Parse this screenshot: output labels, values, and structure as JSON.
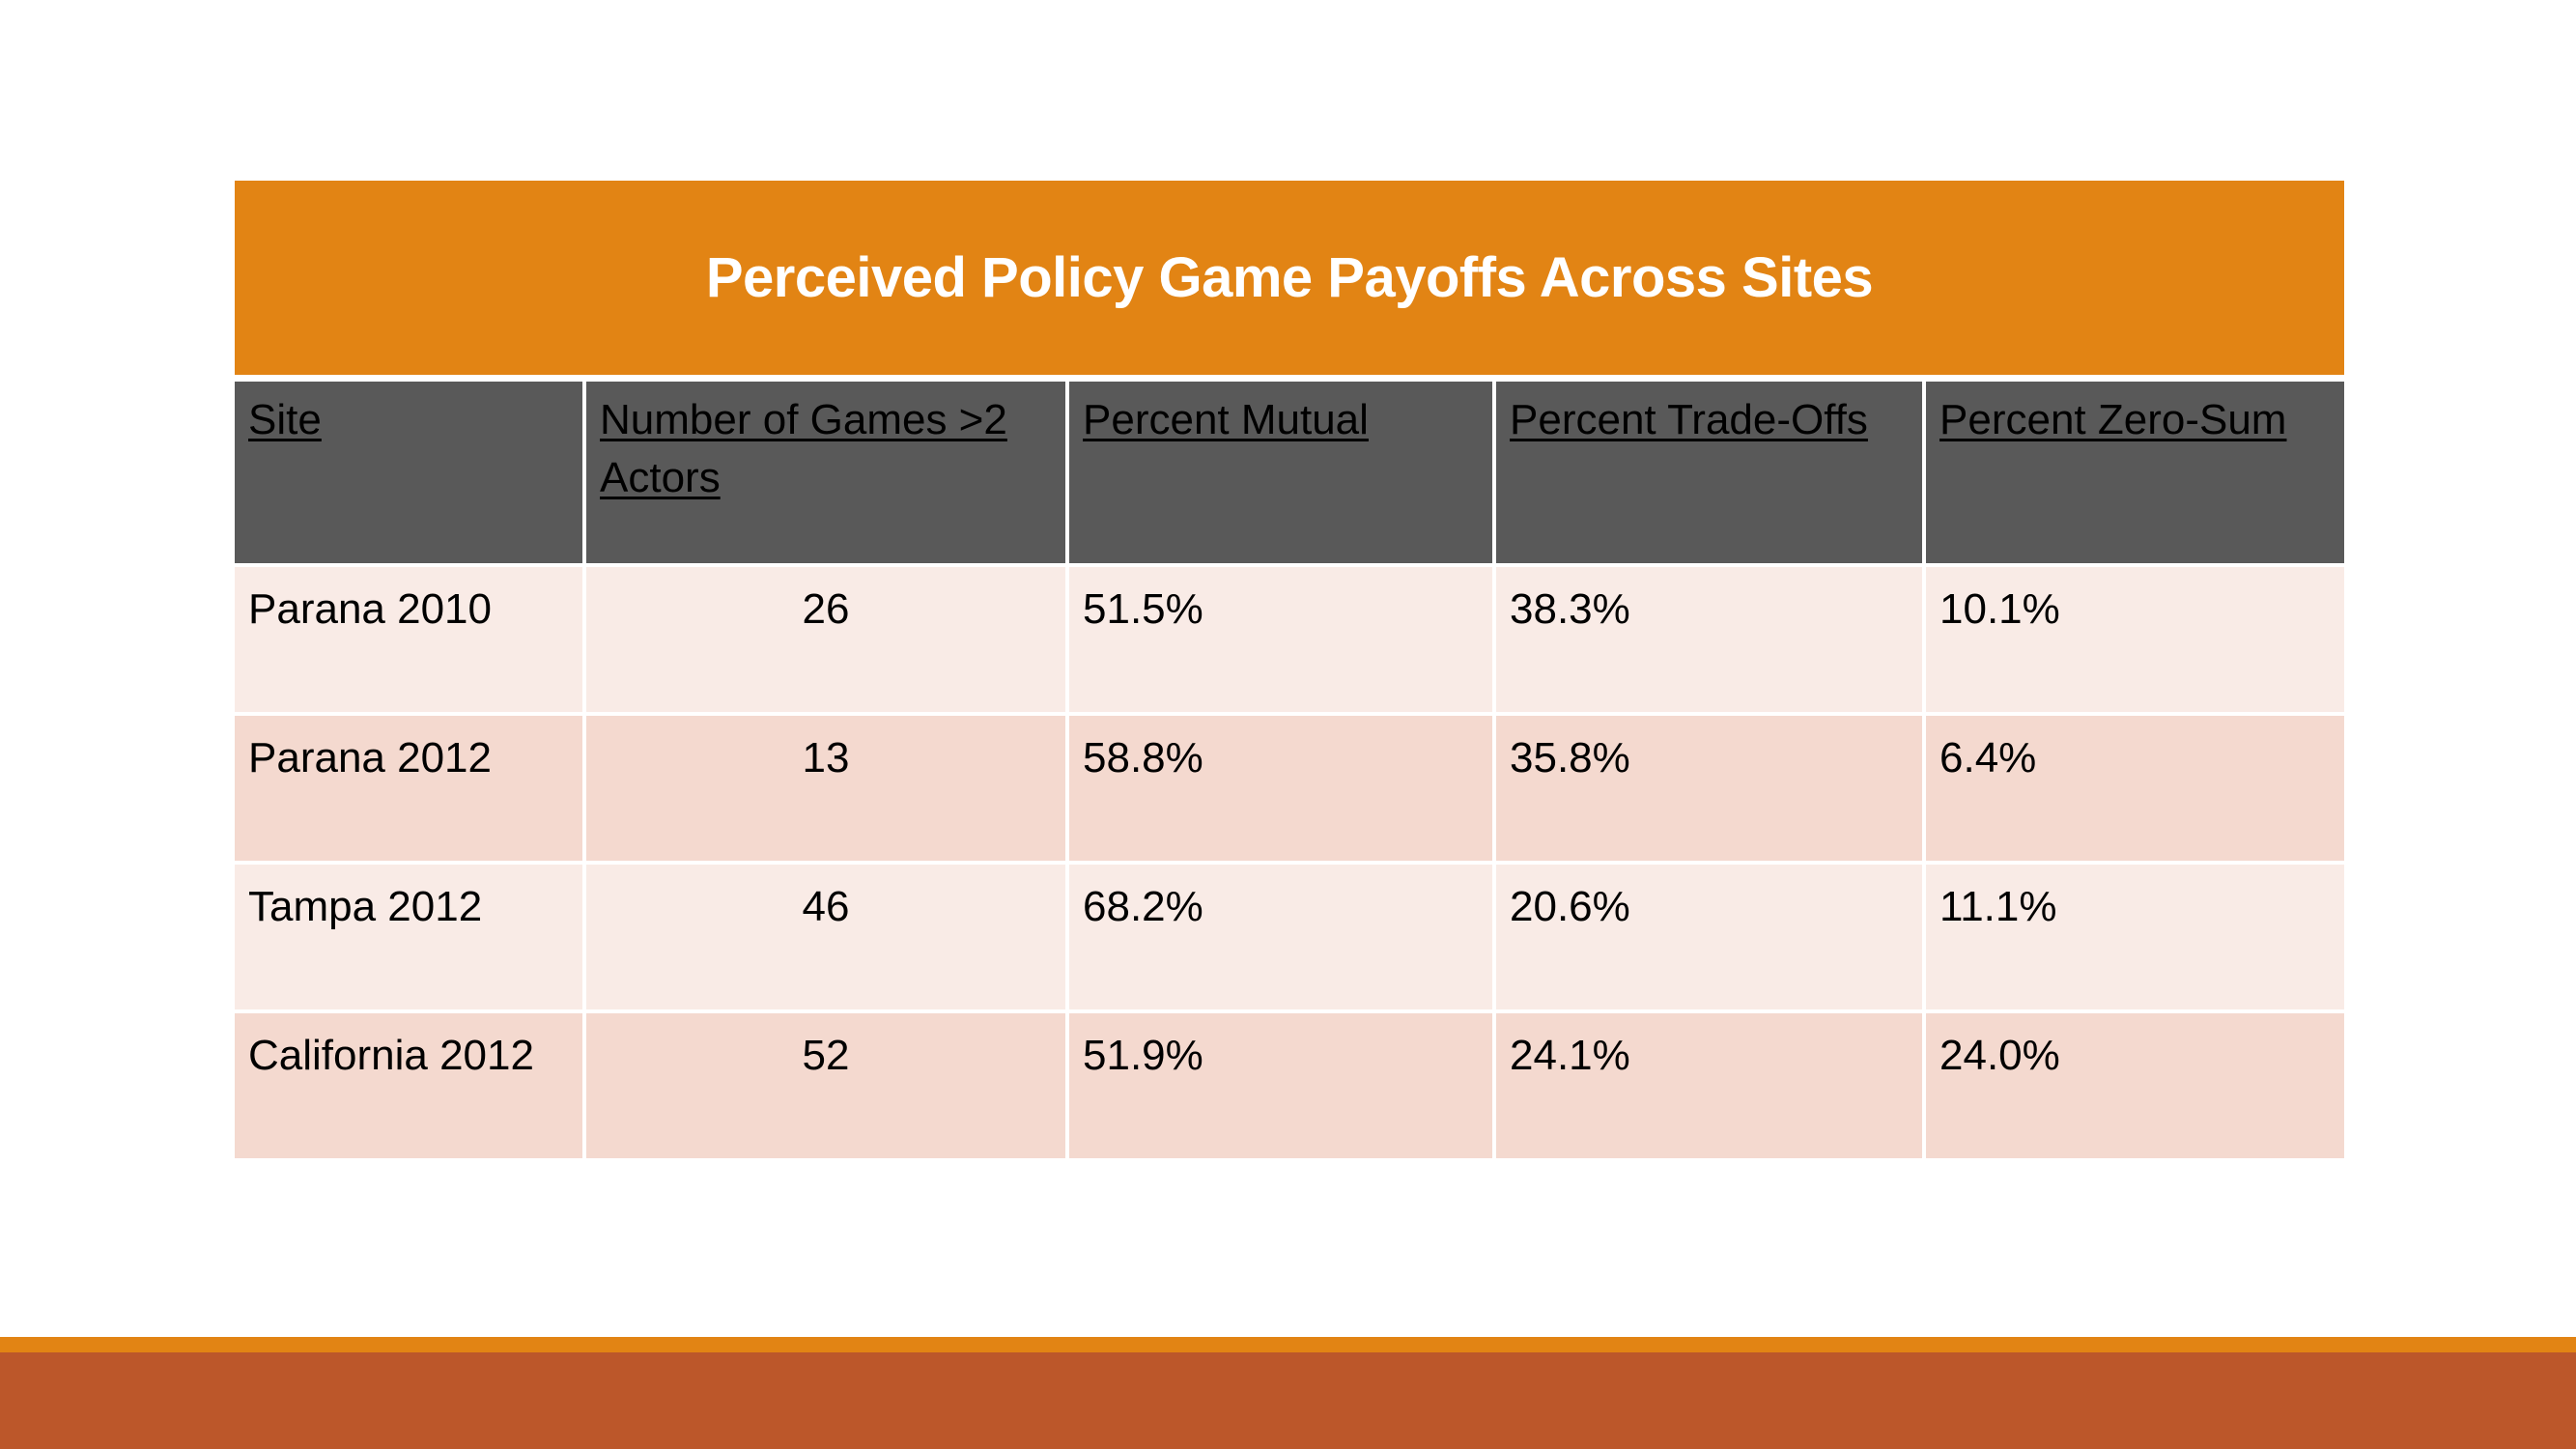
{
  "table": {
    "title": "Perceived Policy Game Payoffs Across Sites",
    "headers": [
      "Site",
      "Number of Games >2 Actors",
      "Percent Mutual",
      "Percent Trade-Offs",
      "Percent Zero-Sum"
    ],
    "rows": [
      [
        "Parana 2010",
        "26",
        "51.5%",
        "38.3%",
        "10.1%"
      ],
      [
        "Parana 2012",
        "13",
        "58.8%",
        "35.8%",
        "6.4%"
      ],
      [
        "Tampa 2012",
        "46",
        "68.2%",
        "20.6%",
        "11.1%"
      ],
      [
        "California 2012",
        "52",
        "51.9%",
        "24.1%",
        "24.0%"
      ]
    ]
  },
  "colors": {
    "title_bar": "#e28414",
    "header_row": "#595959",
    "row_light": "#f9ebe6",
    "row_dark": "#f4d9cf",
    "bottom_stripe": "#e28414",
    "bottom_band": "#bc572a"
  }
}
